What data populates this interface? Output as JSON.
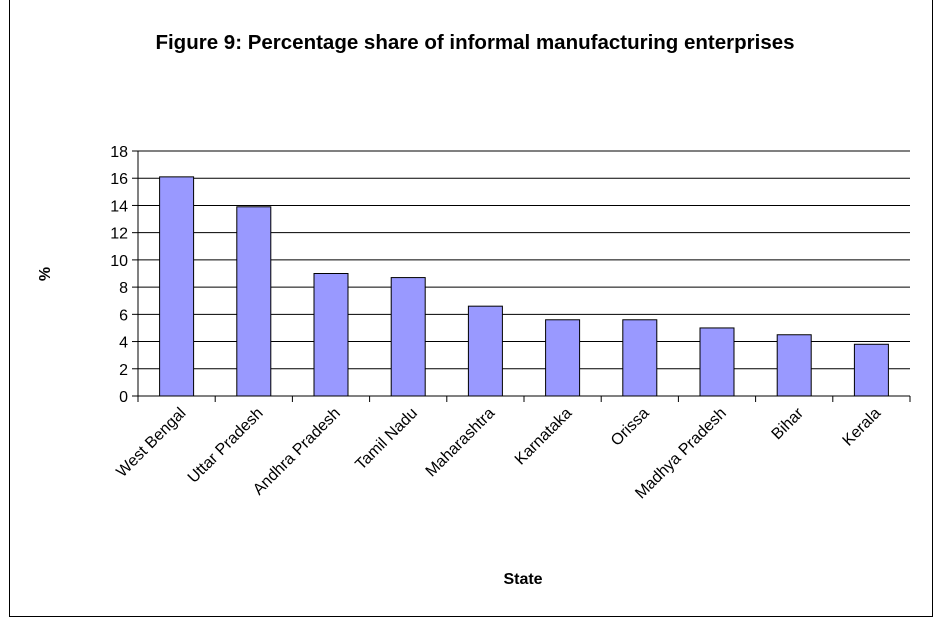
{
  "chart_data": {
    "type": "bar",
    "title": "Figure 9: Percentage share of informal manufacturing enterprises",
    "xlabel": "State",
    "ylabel": "%",
    "categories": [
      "West Bengal",
      "Uttar Pradesh",
      "Andhra Pradesh",
      "Tamil Nadu",
      "Maharashtra",
      "Karnataka",
      "Orissa",
      "Madhya Pradesh",
      "Bihar",
      "Kerala"
    ],
    "values": [
      16.1,
      13.9,
      9.0,
      8.7,
      6.6,
      5.6,
      5.6,
      5.0,
      4.5,
      3.8
    ],
    "ylim": [
      0,
      18
    ],
    "yticks": [
      "0",
      "2",
      "4",
      "6",
      "8",
      "10",
      "12",
      "14",
      "16",
      "18"
    ],
    "grid": true,
    "legend": "none",
    "bar_color": "#9999ff"
  }
}
